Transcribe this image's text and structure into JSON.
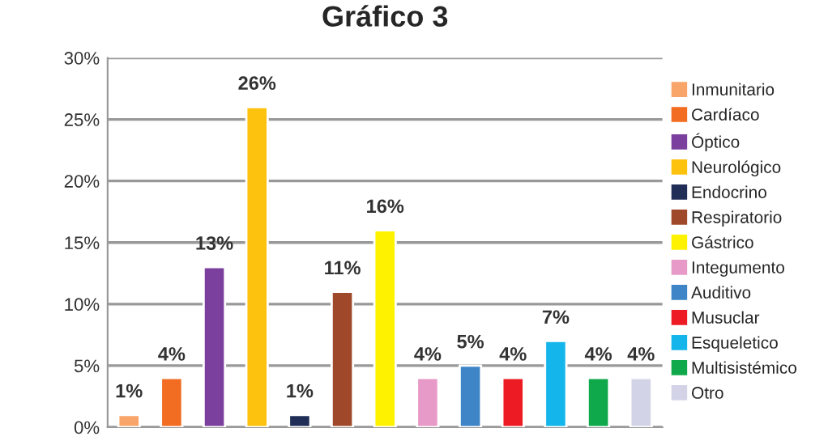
{
  "chart_data": {
    "type": "bar",
    "title": "Gráfico 3",
    "categories": [
      null
    ],
    "series": [
      {
        "name": "Inmunitario",
        "color": "#f9a56a",
        "values": [
          1
        ],
        "value_labels": [
          "1%"
        ]
      },
      {
        "name": "Cardíaco",
        "color": "#f26c21",
        "values": [
          4
        ],
        "value_labels": [
          "4%"
        ]
      },
      {
        "name": "Óptico",
        "color": "#7b3f9e",
        "values": [
          13
        ],
        "value_labels": [
          "13%"
        ]
      },
      {
        "name": "Neurológico",
        "color": "#fdc20e",
        "values": [
          26
        ],
        "value_labels": [
          "26%"
        ]
      },
      {
        "name": "Endocrino",
        "color": "#1f2d57",
        "values": [
          1
        ],
        "value_labels": [
          "1%"
        ]
      },
      {
        "name": "Respiratorio",
        "color": "#a0492a",
        "values": [
          11
        ],
        "value_labels": [
          "11%"
        ]
      },
      {
        "name": "Gástrico",
        "color": "#fff200",
        "values": [
          16
        ],
        "value_labels": [
          "16%"
        ]
      },
      {
        "name": "Integumento",
        "color": "#e79ac7",
        "values": [
          4
        ],
        "value_labels": [
          "4%"
        ]
      },
      {
        "name": "Auditivo",
        "color": "#3d85c6",
        "values": [
          5
        ],
        "value_labels": [
          "5%"
        ]
      },
      {
        "name": "Musuclar",
        "color": "#ed1c24",
        "values": [
          4
        ],
        "value_labels": [
          "4%"
        ]
      },
      {
        "name": "Esqueletico",
        "color": "#13b5ea",
        "values": [
          7
        ],
        "value_labels": [
          "7%"
        ]
      },
      {
        "name": "Multisistémico",
        "color": "#0fa84a",
        "values": [
          4
        ],
        "value_labels": [
          "4%"
        ]
      },
      {
        "name": "Otro",
        "color": "#d3d3e8",
        "values": [
          4
        ],
        "value_labels": [
          "4%"
        ]
      }
    ],
    "ylim": [
      0,
      30
    ],
    "yticks": [
      {
        "value": 0,
        "label": "0%"
      },
      {
        "value": 5,
        "label": "5%"
      },
      {
        "value": 10,
        "label": "10%"
      },
      {
        "value": 15,
        "label": "15%"
      },
      {
        "value": 20,
        "label": "20%"
      },
      {
        "value": 25,
        "label": "25%"
      },
      {
        "value": 30,
        "label": "30%"
      }
    ],
    "grid": "y",
    "legend": "right"
  }
}
